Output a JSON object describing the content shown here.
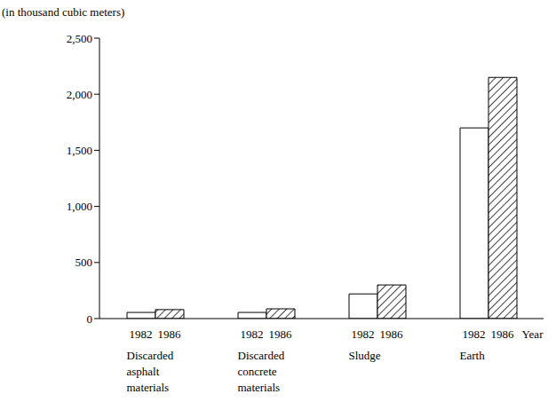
{
  "chart_data": {
    "type": "bar",
    "y_label": "(in thousand cubic meters)",
    "x_label": "Year",
    "categories": [
      "Discarded asphalt materials",
      "Discarded concrete materials",
      "Sludge",
      "Earth"
    ],
    "series": [
      {
        "name": "1982",
        "color": "#ffffff",
        "values": [
          55,
          55,
          220,
          1700
        ]
      },
      {
        "name": "1986",
        "color": "#000000",
        "values": [
          80,
          87,
          300,
          2150
        ]
      }
    ],
    "ylim": [
      0,
      2500
    ],
    "yticks": [
      0,
      500,
      {
        "value": 1000,
        "label": "1,000"
      },
      {
        "value": 1500,
        "label": "1,500"
      },
      {
        "value": 2000,
        "label": "2,000"
      },
      {
        "value": 2500,
        "label": "2,500"
      }
    ],
    "grid": false
  }
}
